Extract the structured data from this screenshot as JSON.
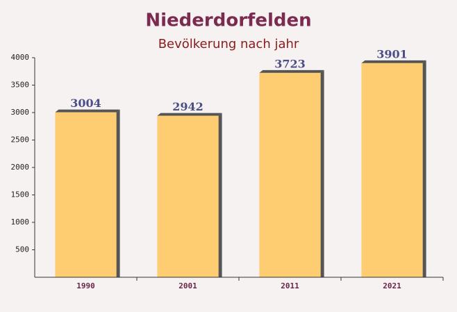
{
  "chart_data": {
    "type": "bar",
    "title": "Niederdorfelden",
    "subtitle": "Bevölkerung nach jahr",
    "categories": [
      "1990",
      "2001",
      "2011",
      "2021"
    ],
    "values": [
      3004,
      2942,
      3723,
      3901
    ],
    "color": "#ffc55a",
    "ylim": [
      0,
      4000
    ],
    "yticks": [
      500,
      1000,
      1500,
      2000,
      2500,
      3000,
      3500,
      4000
    ]
  }
}
